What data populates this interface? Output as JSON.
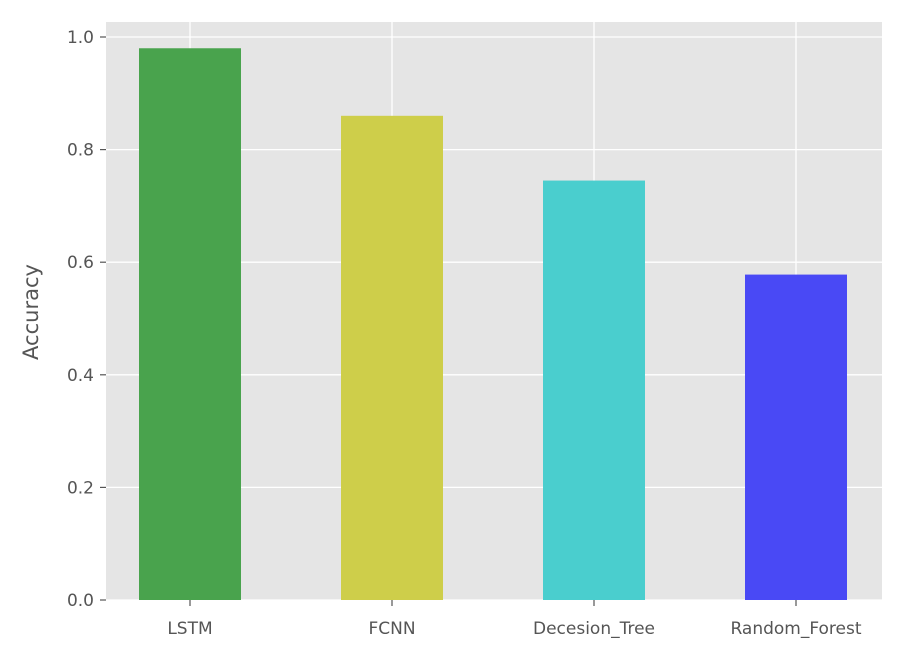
{
  "chart_data": {
    "type": "bar",
    "title": "",
    "xlabel": "",
    "ylabel": "Accuracy",
    "categories": [
      "LSTM",
      "FCNN",
      "Decesion_Tree",
      "Random_Forest"
    ],
    "values": [
      0.98,
      0.86,
      0.745,
      0.578
    ],
    "bar_colors": [
      "#43a047",
      "#cccc44",
      "#44cccc",
      "#4343f5"
    ],
    "ylim": [
      0,
      1.0
    ],
    "yticks": [
      "0.0",
      "0.2",
      "0.4",
      "0.6",
      "0.8",
      "1.0"
    ],
    "grid": true,
    "plot_background": "#e5e5e5",
    "grid_color": "#ffffff"
  }
}
